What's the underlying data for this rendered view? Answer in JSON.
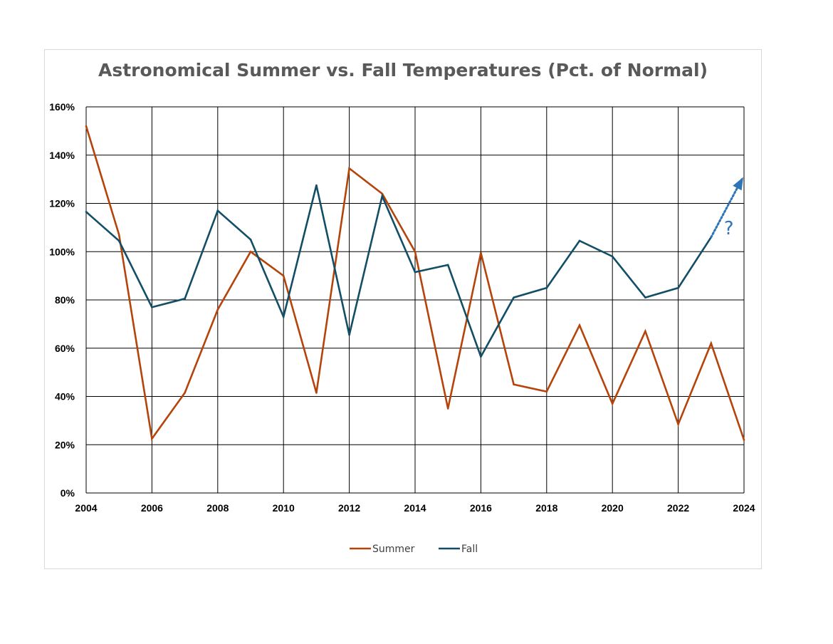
{
  "chart_data": {
    "type": "line",
    "title": "Astronomical Summer vs. Fall Temperatures (Pct. of Normal)",
    "xlabel": "",
    "ylabel": "",
    "xlim": [
      2004,
      2024
    ],
    "ylim": [
      0,
      160
    ],
    "x_tick_labels": [
      "2004",
      "2006",
      "2008",
      "2010",
      "2012",
      "2014",
      "2016",
      "2018",
      "2020",
      "2022",
      "2024"
    ],
    "y_tick_labels": [
      "0%",
      "20%",
      "40%",
      "60%",
      "80%",
      "100%",
      "120%",
      "140%",
      "160%"
    ],
    "grid": true,
    "legend_position": "bottom",
    "x": [
      2004,
      2005,
      2006,
      2007,
      2008,
      2009,
      2010,
      2011,
      2012,
      2013,
      2014,
      2015,
      2016,
      2017,
      2018,
      2019,
      2020,
      2021,
      2022,
      2023,
      2024
    ],
    "series": [
      {
        "name": "Summer",
        "color": "#b5440b",
        "values": [
          152,
          107,
          22.5,
          41.5,
          76,
          100,
          90,
          41.5,
          134.5,
          124,
          100,
          35,
          99.5,
          45,
          42,
          69.5,
          37,
          67,
          28.5,
          62,
          22
        ]
      },
      {
        "name": "Fall",
        "color": "#124e66",
        "values": [
          116.5,
          104.5,
          77,
          80.5,
          117,
          105,
          73,
          127.5,
          65.5,
          123,
          91.5,
          94.5,
          56.5,
          81,
          85,
          104.5,
          98,
          81,
          85,
          106,
          null
        ]
      }
    ],
    "annotation": {
      "text": "?",
      "color": "#2e75b6",
      "style": "dotted-arrow",
      "from": [
        2023,
        106
      ],
      "to": [
        2024,
        130
      ]
    }
  }
}
